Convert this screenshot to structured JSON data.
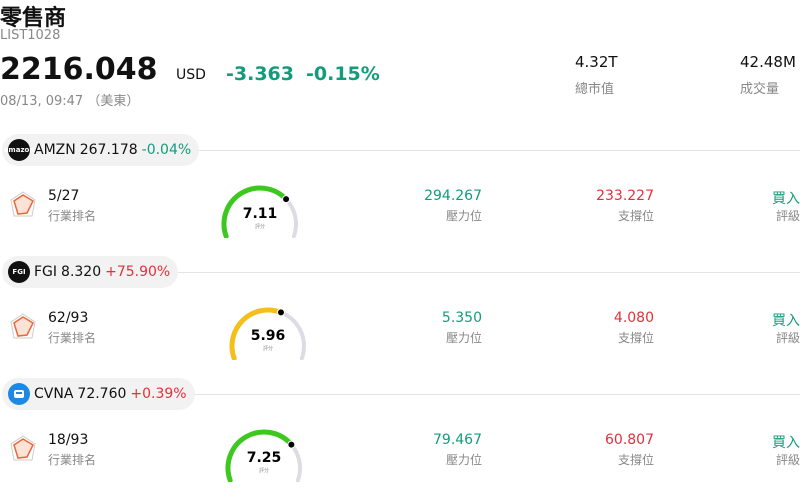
{
  "header": {
    "title": "零售商",
    "code": "LIST1028",
    "price": "2216.048",
    "currency": "USD",
    "change": "-3.363",
    "change_pct": "-0.15%",
    "change_color": "#129c7c",
    "time": "08/13, 09:47 （美東）",
    "stats": [
      {
        "value": "4.32T",
        "label": "總市值"
      },
      {
        "value": "42.48M",
        "label": "成交量"
      }
    ]
  },
  "score_range": [
    0,
    10
  ],
  "stocks": [
    {
      "logo": "amazon",
      "ticker": "AMZN",
      "price": "267.178",
      "change": "-0.04%",
      "change_color": "#129c7c",
      "rank": "5/27",
      "rank_label": "行業排名",
      "score": 7.11,
      "score_color": "#3cc81e",
      "score_label": "評分",
      "resistance": "294.267",
      "resistance_label": "壓力位",
      "support": "233.227",
      "support_label": "支撐位",
      "rating": "買入",
      "rating_label": "評級"
    },
    {
      "logo": "FGI",
      "ticker": "FGI",
      "price": "8.320",
      "change": "+75.90%",
      "change_color": "#e0313b",
      "rank": "62/93",
      "rank_label": "行業排名",
      "score": 5.96,
      "score_color": "#f4bf1a",
      "score_label": "評分",
      "resistance": "5.350",
      "resistance_label": "壓力位",
      "support": "4.080",
      "support_label": "支撐位",
      "rating": "買入",
      "rating_label": "評級"
    },
    {
      "ticker": "CVNA",
      "price": "72.760",
      "change": "+0.39%",
      "change_color": "#e0313b",
      "rank": "18/93",
      "rank_label": "行業排名",
      "score": 7.25,
      "score_color": "#3cc81e",
      "score_label": "評分",
      "resistance": "79.467",
      "resistance_label": "壓力位",
      "support": "60.807",
      "support_label": "支撐位",
      "rating": "買入",
      "rating_label": "評級"
    }
  ]
}
